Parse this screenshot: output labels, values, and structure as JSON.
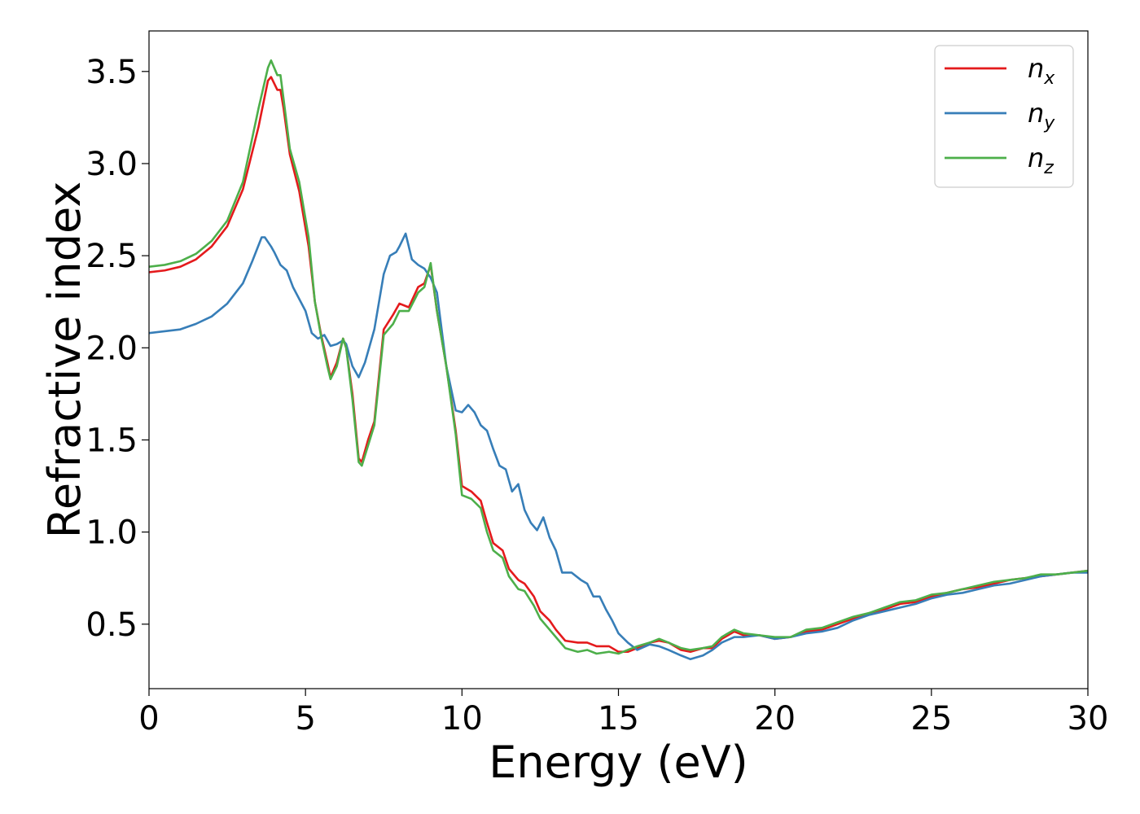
{
  "chart_data": {
    "type": "line",
    "xlabel": "Energy (eV)",
    "ylabel": "Refractive index",
    "xlim": [
      0,
      30
    ],
    "ylim": [
      0.15,
      3.72
    ],
    "xticks": [
      0,
      5,
      10,
      15,
      20,
      25,
      30
    ],
    "xtick_labels": [
      "0",
      "5",
      "10",
      "15",
      "20",
      "25",
      "30"
    ],
    "yticks": [
      0.5,
      1.0,
      1.5,
      2.0,
      2.5,
      3.0,
      3.5
    ],
    "ytick_labels": [
      "0.5",
      "1.0",
      "1.5",
      "2.0",
      "2.5",
      "3.0",
      "3.5"
    ],
    "grid": false,
    "legend_position": "top-right",
    "series": [
      {
        "name": "n",
        "subscript": "x",
        "color": "#e41a1c",
        "points": [
          [
            0,
            2.41
          ],
          [
            0.5,
            2.42
          ],
          [
            1,
            2.44
          ],
          [
            1.5,
            2.48
          ],
          [
            2,
            2.55
          ],
          [
            2.5,
            2.66
          ],
          [
            3,
            2.86
          ],
          [
            3.5,
            3.2
          ],
          [
            3.8,
            3.45
          ],
          [
            3.9,
            3.47
          ],
          [
            4.1,
            3.4
          ],
          [
            4.2,
            3.4
          ],
          [
            4.3,
            3.3
          ],
          [
            4.5,
            3.05
          ],
          [
            4.8,
            2.85
          ],
          [
            5.1,
            2.55
          ],
          [
            5.3,
            2.25
          ],
          [
            5.5,
            2.07
          ],
          [
            5.7,
            1.92
          ],
          [
            5.8,
            1.84
          ],
          [
            6.0,
            1.92
          ],
          [
            6.2,
            2.05
          ],
          [
            6.3,
            2.0
          ],
          [
            6.5,
            1.75
          ],
          [
            6.7,
            1.4
          ],
          [
            6.8,
            1.38
          ],
          [
            7.0,
            1.5
          ],
          [
            7.2,
            1.6
          ],
          [
            7.5,
            2.1
          ],
          [
            7.8,
            2.18
          ],
          [
            8.0,
            2.24
          ],
          [
            8.3,
            2.22
          ],
          [
            8.6,
            2.33
          ],
          [
            8.8,
            2.35
          ],
          [
            9.0,
            2.45
          ],
          [
            9.2,
            2.2
          ],
          [
            9.5,
            1.9
          ],
          [
            9.8,
            1.55
          ],
          [
            10.0,
            1.25
          ],
          [
            10.3,
            1.22
          ],
          [
            10.6,
            1.17
          ],
          [
            10.8,
            1.05
          ],
          [
            11.0,
            0.94
          ],
          [
            11.3,
            0.9
          ],
          [
            11.5,
            0.8
          ],
          [
            11.8,
            0.74
          ],
          [
            12.0,
            0.72
          ],
          [
            12.3,
            0.65
          ],
          [
            12.5,
            0.57
          ],
          [
            12.8,
            0.52
          ],
          [
            13.0,
            0.47
          ],
          [
            13.3,
            0.41
          ],
          [
            13.7,
            0.4
          ],
          [
            14.0,
            0.4
          ],
          [
            14.3,
            0.38
          ],
          [
            14.7,
            0.38
          ],
          [
            15.0,
            0.35
          ],
          [
            15.3,
            0.35
          ],
          [
            15.6,
            0.37
          ],
          [
            16.0,
            0.4
          ],
          [
            16.3,
            0.41
          ],
          [
            16.6,
            0.4
          ],
          [
            17.0,
            0.36
          ],
          [
            17.3,
            0.35
          ],
          [
            17.7,
            0.37
          ],
          [
            18.0,
            0.37
          ],
          [
            18.3,
            0.42
          ],
          [
            18.7,
            0.46
          ],
          [
            19.0,
            0.44
          ],
          [
            19.5,
            0.44
          ],
          [
            20.0,
            0.42
          ],
          [
            20.5,
            0.43
          ],
          [
            21.0,
            0.46
          ],
          [
            21.5,
            0.47
          ],
          [
            22.0,
            0.5
          ],
          [
            22.5,
            0.53
          ],
          [
            23.0,
            0.56
          ],
          [
            23.5,
            0.58
          ],
          [
            24.0,
            0.61
          ],
          [
            24.5,
            0.62
          ],
          [
            25.0,
            0.65
          ],
          [
            25.5,
            0.67
          ],
          [
            26.0,
            0.69
          ],
          [
            26.5,
            0.7
          ],
          [
            27.0,
            0.72
          ],
          [
            27.5,
            0.74
          ],
          [
            28.0,
            0.75
          ],
          [
            28.5,
            0.76
          ],
          [
            29.0,
            0.77
          ],
          [
            29.5,
            0.78
          ],
          [
            30.0,
            0.79
          ]
        ]
      },
      {
        "name": "n",
        "subscript": "y",
        "color": "#377eb8",
        "points": [
          [
            0,
            2.08
          ],
          [
            0.5,
            2.09
          ],
          [
            1,
            2.1
          ],
          [
            1.5,
            2.13
          ],
          [
            2,
            2.17
          ],
          [
            2.5,
            2.24
          ],
          [
            3,
            2.35
          ],
          [
            3.3,
            2.47
          ],
          [
            3.6,
            2.6
          ],
          [
            3.7,
            2.6
          ],
          [
            3.9,
            2.55
          ],
          [
            4.0,
            2.52
          ],
          [
            4.2,
            2.45
          ],
          [
            4.4,
            2.42
          ],
          [
            4.6,
            2.33
          ],
          [
            5.0,
            2.2
          ],
          [
            5.2,
            2.08
          ],
          [
            5.4,
            2.05
          ],
          [
            5.6,
            2.07
          ],
          [
            5.8,
            2.01
          ],
          [
            6.0,
            2.02
          ],
          [
            6.2,
            2.04
          ],
          [
            6.3,
            2.02
          ],
          [
            6.5,
            1.9
          ],
          [
            6.7,
            1.84
          ],
          [
            6.9,
            1.92
          ],
          [
            7.2,
            2.1
          ],
          [
            7.5,
            2.4
          ],
          [
            7.7,
            2.5
          ],
          [
            7.9,
            2.52
          ],
          [
            8.0,
            2.55
          ],
          [
            8.2,
            2.62
          ],
          [
            8.4,
            2.48
          ],
          [
            8.6,
            2.45
          ],
          [
            8.8,
            2.43
          ],
          [
            9.0,
            2.38
          ],
          [
            9.2,
            2.3
          ],
          [
            9.5,
            1.9
          ],
          [
            9.8,
            1.66
          ],
          [
            10.0,
            1.65
          ],
          [
            10.2,
            1.69
          ],
          [
            10.4,
            1.65
          ],
          [
            10.6,
            1.58
          ],
          [
            10.8,
            1.55
          ],
          [
            11.0,
            1.45
          ],
          [
            11.2,
            1.36
          ],
          [
            11.4,
            1.34
          ],
          [
            11.6,
            1.22
          ],
          [
            11.8,
            1.26
          ],
          [
            12.0,
            1.12
          ],
          [
            12.2,
            1.05
          ],
          [
            12.4,
            1.01
          ],
          [
            12.6,
            1.08
          ],
          [
            12.8,
            0.97
          ],
          [
            13.0,
            0.9
          ],
          [
            13.2,
            0.78
          ],
          [
            13.5,
            0.78
          ],
          [
            13.8,
            0.74
          ],
          [
            14.0,
            0.72
          ],
          [
            14.2,
            0.65
          ],
          [
            14.4,
            0.65
          ],
          [
            14.6,
            0.58
          ],
          [
            14.8,
            0.52
          ],
          [
            15.0,
            0.45
          ],
          [
            15.3,
            0.4
          ],
          [
            15.6,
            0.36
          ],
          [
            16.0,
            0.39
          ],
          [
            16.3,
            0.38
          ],
          [
            16.6,
            0.36
          ],
          [
            17.0,
            0.33
          ],
          [
            17.3,
            0.31
          ],
          [
            17.7,
            0.33
          ],
          [
            18.0,
            0.36
          ],
          [
            18.3,
            0.4
          ],
          [
            18.7,
            0.43
          ],
          [
            19.0,
            0.43
          ],
          [
            19.5,
            0.44
          ],
          [
            20.0,
            0.42
          ],
          [
            20.5,
            0.43
          ],
          [
            21.0,
            0.45
          ],
          [
            21.5,
            0.46
          ],
          [
            22.0,
            0.48
          ],
          [
            22.5,
            0.52
          ],
          [
            23.0,
            0.55
          ],
          [
            23.5,
            0.57
          ],
          [
            24.0,
            0.59
          ],
          [
            24.5,
            0.61
          ],
          [
            25.0,
            0.64
          ],
          [
            25.5,
            0.66
          ],
          [
            26.0,
            0.67
          ],
          [
            26.5,
            0.69
          ],
          [
            27.0,
            0.71
          ],
          [
            27.5,
            0.72
          ],
          [
            28.0,
            0.74
          ],
          [
            28.5,
            0.76
          ],
          [
            29.0,
            0.77
          ],
          [
            29.5,
            0.78
          ],
          [
            30.0,
            0.78
          ]
        ]
      },
      {
        "name": "n",
        "subscript": "z",
        "color": "#4daf4a",
        "points": [
          [
            0,
            2.44
          ],
          [
            0.5,
            2.45
          ],
          [
            1,
            2.47
          ],
          [
            1.5,
            2.51
          ],
          [
            2,
            2.58
          ],
          [
            2.5,
            2.69
          ],
          [
            3,
            2.9
          ],
          [
            3.5,
            3.3
          ],
          [
            3.8,
            3.52
          ],
          [
            3.9,
            3.56
          ],
          [
            4.1,
            3.48
          ],
          [
            4.2,
            3.48
          ],
          [
            4.3,
            3.35
          ],
          [
            4.5,
            3.08
          ],
          [
            4.8,
            2.9
          ],
          [
            5.1,
            2.6
          ],
          [
            5.3,
            2.25
          ],
          [
            5.5,
            2.06
          ],
          [
            5.7,
            1.9
          ],
          [
            5.8,
            1.83
          ],
          [
            6.0,
            1.9
          ],
          [
            6.2,
            2.05
          ],
          [
            6.3,
            2.0
          ],
          [
            6.5,
            1.72
          ],
          [
            6.7,
            1.38
          ],
          [
            6.8,
            1.36
          ],
          [
            7.0,
            1.47
          ],
          [
            7.2,
            1.58
          ],
          [
            7.5,
            2.07
          ],
          [
            7.8,
            2.13
          ],
          [
            8.0,
            2.2
          ],
          [
            8.3,
            2.2
          ],
          [
            8.6,
            2.3
          ],
          [
            8.8,
            2.33
          ],
          [
            9.0,
            2.46
          ],
          [
            9.2,
            2.2
          ],
          [
            9.5,
            1.9
          ],
          [
            9.8,
            1.53
          ],
          [
            10.0,
            1.2
          ],
          [
            10.3,
            1.18
          ],
          [
            10.6,
            1.13
          ],
          [
            10.8,
            1.0
          ],
          [
            11.0,
            0.9
          ],
          [
            11.3,
            0.86
          ],
          [
            11.5,
            0.76
          ],
          [
            11.8,
            0.69
          ],
          [
            12.0,
            0.68
          ],
          [
            12.3,
            0.6
          ],
          [
            12.5,
            0.53
          ],
          [
            12.8,
            0.47
          ],
          [
            13.0,
            0.43
          ],
          [
            13.3,
            0.37
          ],
          [
            13.7,
            0.35
          ],
          [
            14.0,
            0.36
          ],
          [
            14.3,
            0.34
          ],
          [
            14.7,
            0.35
          ],
          [
            15.0,
            0.34
          ],
          [
            15.3,
            0.36
          ],
          [
            15.6,
            0.38
          ],
          [
            16.0,
            0.4
          ],
          [
            16.3,
            0.42
          ],
          [
            16.6,
            0.4
          ],
          [
            17.0,
            0.37
          ],
          [
            17.3,
            0.36
          ],
          [
            17.7,
            0.37
          ],
          [
            18.0,
            0.38
          ],
          [
            18.3,
            0.43
          ],
          [
            18.7,
            0.47
          ],
          [
            19.0,
            0.45
          ],
          [
            19.5,
            0.44
          ],
          [
            20.0,
            0.43
          ],
          [
            20.5,
            0.43
          ],
          [
            21.0,
            0.47
          ],
          [
            21.5,
            0.48
          ],
          [
            22.0,
            0.51
          ],
          [
            22.5,
            0.54
          ],
          [
            23.0,
            0.56
          ],
          [
            23.5,
            0.59
          ],
          [
            24.0,
            0.62
          ],
          [
            24.5,
            0.63
          ],
          [
            25.0,
            0.66
          ],
          [
            25.5,
            0.67
          ],
          [
            26.0,
            0.69
          ],
          [
            26.5,
            0.71
          ],
          [
            27.0,
            0.73
          ],
          [
            27.5,
            0.74
          ],
          [
            28.0,
            0.75
          ],
          [
            28.5,
            0.77
          ],
          [
            29.0,
            0.77
          ],
          [
            29.5,
            0.78
          ],
          [
            30.0,
            0.79
          ]
        ]
      }
    ]
  }
}
